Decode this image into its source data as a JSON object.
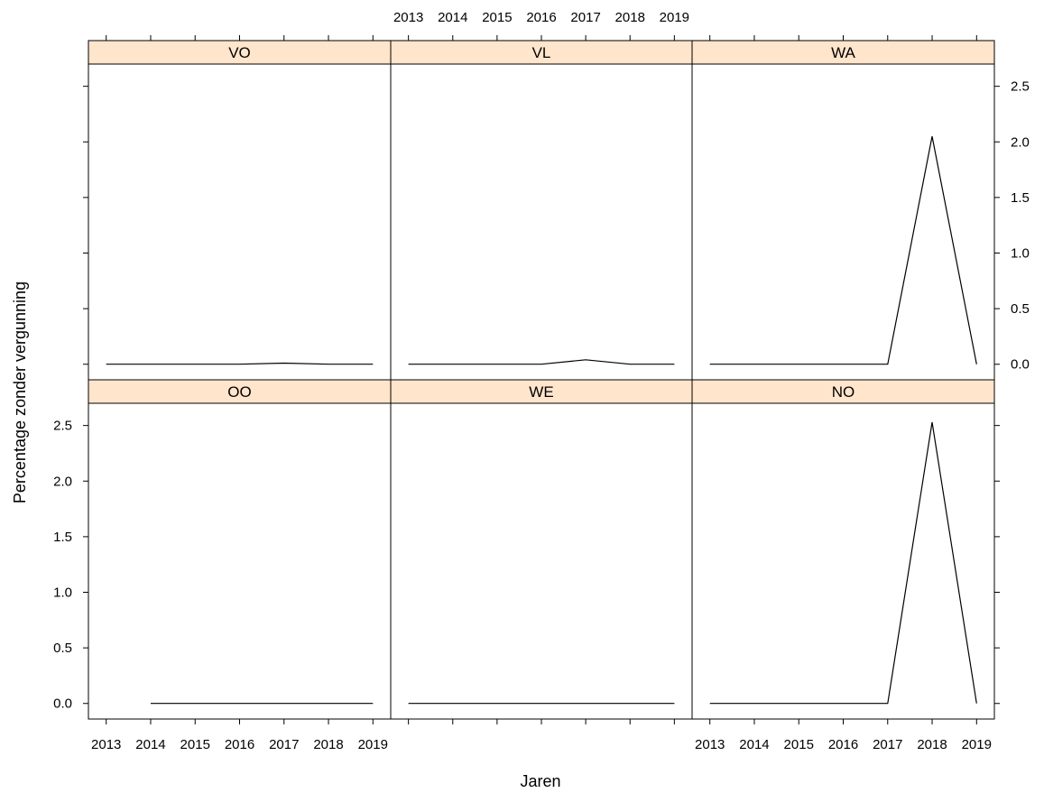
{
  "chart_data": {
    "type": "line",
    "layout": {
      "columns": 3,
      "rows": 2
    },
    "xlabel": "Jaren",
    "ylabel": "Percentage zonder vergunning",
    "x_ticks": [
      "2013",
      "2014",
      "2015",
      "2016",
      "2017",
      "2018",
      "2019"
    ],
    "y_ticks": [
      "0.0",
      "0.5",
      "1.0",
      "1.5",
      "2.0",
      "2.5"
    ],
    "xlim": [
      2012.6,
      2019.4
    ],
    "ylim": [
      -0.14,
      2.7
    ],
    "panels": [
      {
        "label": "VO",
        "x": [
          2013,
          2014,
          2015,
          2016,
          2017,
          2018,
          2019
        ],
        "y": [
          0,
          0,
          0,
          0,
          0.01,
          0,
          0
        ]
      },
      {
        "label": "VL",
        "x": [
          2013,
          2014,
          2015,
          2016,
          2017,
          2018,
          2019
        ],
        "y": [
          0,
          0,
          0,
          0,
          0.04,
          0,
          0
        ]
      },
      {
        "label": "WA",
        "x": [
          2013,
          2014,
          2015,
          2016,
          2017,
          2018,
          2019
        ],
        "y": [
          0,
          0,
          0,
          0,
          0,
          2.05,
          0
        ]
      },
      {
        "label": "OO",
        "x": [
          2014,
          2015,
          2016,
          2017,
          2018,
          2019
        ],
        "y": [
          0,
          0,
          0,
          0,
          0,
          0
        ]
      },
      {
        "label": "WE",
        "x": [
          2013,
          2014,
          2015,
          2016,
          2017,
          2018,
          2019
        ],
        "y": [
          0,
          0,
          0,
          0,
          0,
          0,
          0
        ]
      },
      {
        "label": "NO",
        "x": [
          2013,
          2014,
          2015,
          2016,
          2017,
          2018,
          2019
        ],
        "y": [
          0,
          0,
          0,
          0,
          0,
          2.53,
          0
        ]
      }
    ]
  }
}
